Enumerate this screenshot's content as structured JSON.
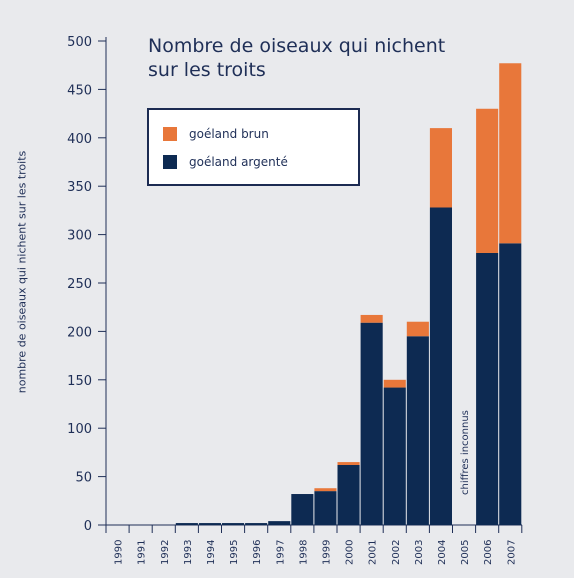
{
  "chart_data": {
    "type": "bar",
    "stacked": true,
    "title": "Nombre de oiseaux qui nichent sur les troits",
    "ylabel": "nombre de oiseaux qui nichent sur les troits",
    "xlabel": "",
    "ylim": [
      0,
      500
    ],
    "yticks": [
      "0",
      "50",
      "100",
      "150",
      "200",
      "250",
      "300",
      "350",
      "400",
      "450",
      "500"
    ],
    "categories": [
      "1990",
      "1991",
      "1992",
      "1993",
      "1994",
      "1995",
      "1996",
      "1997",
      "1998",
      "1999",
      "2000",
      "2001",
      "2002",
      "2003",
      "2004",
      "2005",
      "2006",
      "2007"
    ],
    "series": [
      {
        "name": "goéland argenté",
        "color": "#0d2a52",
        "values": [
          0,
          0,
          0,
          2,
          2,
          2,
          2,
          4,
          32,
          35,
          62,
          209,
          142,
          195,
          328,
          null,
          281,
          291
        ]
      },
      {
        "name": "goéland brun",
        "color": "#e8773a",
        "values": [
          0,
          0,
          0,
          0,
          0,
          0,
          0,
          0,
          0,
          3,
          3,
          8,
          8,
          15,
          82,
          null,
          149,
          186
        ]
      }
    ],
    "annotation": "chiffres inconnus",
    "legend_position": "top-left",
    "grid": false
  }
}
